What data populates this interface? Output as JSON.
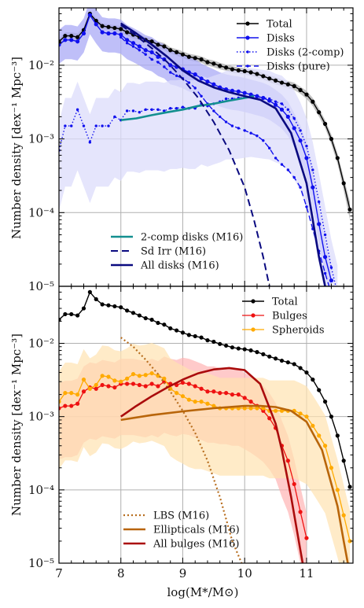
{
  "figure": {
    "xlabel": "log(M*/M⊙)",
    "xlim": [
      7.0,
      11.75
    ],
    "x_ticks": [
      7,
      8,
      9,
      10,
      11
    ],
    "x_tick_labels": [
      "7",
      "8",
      "9",
      "10",
      "11"
    ],
    "ylabel": "Number density [dex⁻¹ Mpc⁻³]",
    "y_scale": "log",
    "ylim": [
      1e-05,
      0.06
    ],
    "y_ticks": [
      1e-05,
      0.0001,
      0.001,
      0.01
    ],
    "y_tick_labels": [
      "10⁻⁵",
      "10⁻⁴",
      "10⁻³",
      "10⁻²"
    ],
    "grid": true
  },
  "colors": {
    "total": "#000000",
    "total_band": "#bdbdbd",
    "disks": "#1010ee",
    "disks_band": "#aaaaf5",
    "disks_2comp_band": "#dcdcfb",
    "bulges": "#ee1111",
    "bulges_band": "#ffb3b3",
    "spheroids": "#ffaa00",
    "spheroids_band": "#ffe2b0",
    "m16_2comp": "#138f8f",
    "m16_sdirr": "#0a0a80",
    "m16_alldisks": "#0a0a80",
    "m16_lbs": "#b86e1f",
    "m16_ellipticals": "#b8650a",
    "m16_allbulges": "#aa0c0c"
  },
  "chart_data": [
    {
      "type": "line",
      "panel": "top",
      "y_scale": "log",
      "xlim": [
        7.0,
        11.75
      ],
      "ylim": [
        1e-05,
        0.06
      ],
      "grid": true,
      "legend_top": [
        "Total",
        "Disks",
        "Disks (2-comp)",
        "Disks (pure)"
      ],
      "legend_top_placement": "upper-right",
      "legend_bottom": [
        "2-comp disks (M16)",
        "Sd Irr (M16)",
        "All disks (M16)"
      ],
      "legend_bottom_placement": "lower-center",
      "series": [
        {
          "name": "Total",
          "x": [
            7.0,
            7.1,
            7.2,
            7.3,
            7.4,
            7.5,
            7.6,
            7.7,
            7.8,
            7.9,
            8.0,
            8.1,
            8.2,
            8.3,
            8.4,
            8.5,
            8.6,
            8.7,
            8.8,
            8.9,
            9.0,
            9.1,
            9.2,
            9.3,
            9.4,
            9.5,
            9.6,
            9.7,
            9.8,
            9.9,
            10.0,
            10.1,
            10.2,
            10.3,
            10.4,
            10.5,
            10.6,
            10.7,
            10.8,
            10.9,
            11.0,
            11.1,
            11.2,
            11.3,
            11.4,
            11.5,
            11.6,
            11.7
          ],
          "y": [
            0.021,
            0.025,
            0.025,
            0.024,
            0.03,
            0.05,
            0.04,
            0.034,
            0.033,
            0.032,
            0.031,
            0.028,
            0.026,
            0.024,
            0.022,
            0.021,
            0.019,
            0.018,
            0.016,
            0.015,
            0.014,
            0.013,
            0.0125,
            0.012,
            0.011,
            0.0105,
            0.0098,
            0.0093,
            0.0088,
            0.0085,
            0.0083,
            0.008,
            0.0076,
            0.0071,
            0.0066,
            0.0062,
            0.0058,
            0.0055,
            0.0052,
            0.0046,
            0.004,
            0.0032,
            0.0023,
            0.0016,
            0.001,
            0.00055,
            0.00025,
            0.00011
          ],
          "band_lo": [
            0.019,
            0.022,
            0.022,
            0.021,
            0.027,
            0.045,
            0.036,
            0.031,
            0.03,
            0.029,
            0.028,
            0.025,
            0.023,
            0.022,
            0.02,
            0.019,
            0.017,
            0.016,
            0.0145,
            0.0135,
            0.0125,
            0.0117,
            0.0112,
            0.0108,
            0.0099,
            0.0094,
            0.0088,
            0.0084,
            0.0079,
            0.0077,
            0.0075,
            0.0072,
            0.0068,
            0.0064,
            0.0059,
            0.0055,
            0.0052,
            0.0049,
            0.0046,
            0.0041,
            0.0035,
            0.0028,
            0.002,
            0.0014,
            0.00085,
            0.00046,
            0.0002,
            8e-05
          ],
          "band_hi": [
            0.023,
            0.028,
            0.028,
            0.027,
            0.033,
            0.055,
            0.044,
            0.037,
            0.036,
            0.035,
            0.034,
            0.031,
            0.029,
            0.026,
            0.024,
            0.023,
            0.021,
            0.02,
            0.0175,
            0.0165,
            0.0155,
            0.0143,
            0.0138,
            0.0132,
            0.0121,
            0.0116,
            0.0108,
            0.0102,
            0.0097,
            0.0093,
            0.0091,
            0.0088,
            0.0084,
            0.0078,
            0.0073,
            0.0069,
            0.0064,
            0.0061,
            0.0058,
            0.0051,
            0.0045,
            0.0036,
            0.0026,
            0.0018,
            0.00115,
            0.00064,
            0.0003,
            0.00014
          ]
        },
        {
          "name": "Disks",
          "x": [
            7.0,
            7.1,
            7.2,
            7.3,
            7.4,
            7.5,
            7.6,
            7.7,
            7.8,
            7.9,
            8.0,
            8.1,
            8.2,
            8.3,
            8.4,
            8.5,
            8.6,
            8.7,
            8.8,
            8.9,
            9.0,
            9.1,
            9.2,
            9.3,
            9.4,
            9.5,
            9.6,
            9.7,
            9.8,
            9.9,
            10.0,
            10.1,
            10.2,
            10.3,
            10.4,
            10.5,
            10.6,
            10.7,
            10.8,
            10.9,
            11.0,
            11.1,
            11.2,
            11.3,
            11.4
          ],
          "y": [
            0.019,
            0.022,
            0.022,
            0.021,
            0.027,
            0.048,
            0.036,
            0.028,
            0.027,
            0.027,
            0.026,
            0.022,
            0.02,
            0.018,
            0.016,
            0.015,
            0.013,
            0.012,
            0.01,
            0.0095,
            0.0088,
            0.008,
            0.0075,
            0.0066,
            0.006,
            0.0055,
            0.005,
            0.0047,
            0.0045,
            0.0044,
            0.0042,
            0.004,
            0.0038,
            0.0036,
            0.0033,
            0.0029,
            0.0025,
            0.002,
            0.0014,
            0.00095,
            0.00055,
            0.00022,
            7e-05,
            2.5e-05,
            1.2e-05
          ]
        },
        {
          "name": "Disks (2-comp)",
          "x": [
            7.0,
            7.1,
            7.2,
            7.3,
            7.4,
            7.5,
            7.6,
            7.7,
            7.8,
            7.9,
            8.0,
            8.1,
            8.2,
            8.3,
            8.4,
            8.5,
            8.6,
            8.7,
            8.8,
            8.9,
            9.0,
            9.1,
            9.2,
            9.3,
            9.4,
            9.5,
            9.6,
            9.7,
            9.8,
            9.9,
            10.0,
            10.1,
            10.2,
            10.3,
            10.4,
            10.5,
            10.6,
            10.7,
            10.8,
            10.9,
            11.0,
            11.1,
            11.2,
            11.3,
            11.4,
            11.5
          ],
          "y": [
            0.0007,
            0.0015,
            0.0015,
            0.0025,
            0.0015,
            0.0009,
            0.0015,
            0.0015,
            0.0015,
            0.002,
            0.0018,
            0.0024,
            0.0024,
            0.0023,
            0.0025,
            0.0025,
            0.0025,
            0.0024,
            0.0026,
            0.0026,
            0.0027,
            0.0026,
            0.0026,
            0.003,
            0.0028,
            0.003,
            0.0032,
            0.0035,
            0.0035,
            0.0036,
            0.0037,
            0.0038,
            0.0037,
            0.0036,
            0.0035,
            0.0032,
            0.003,
            0.0025,
            0.0019,
            0.0013,
            0.0008,
            0.00038,
            0.00014,
            5e-05,
            1.8e-05,
            8e-06
          ]
        },
        {
          "name": "Disks (pure)",
          "x": [
            8.0,
            8.1,
            8.2,
            8.3,
            8.4,
            8.5,
            8.6,
            8.7,
            8.8,
            8.9,
            9.0,
            9.1,
            9.2,
            9.3,
            9.4,
            9.5,
            9.6,
            9.7,
            9.8,
            9.9,
            10.0,
            10.1,
            10.2,
            10.3,
            10.4,
            10.5,
            10.6,
            10.7,
            10.8,
            10.9,
            11.0,
            11.1,
            11.2,
            11.3,
            11.4
          ],
          "y": [
            0.024,
            0.02,
            0.018,
            0.016,
            0.014,
            0.012,
            0.011,
            0.0095,
            0.008,
            0.0072,
            0.0066,
            0.0058,
            0.0049,
            0.0038,
            0.003,
            0.0024,
            0.002,
            0.0017,
            0.0015,
            0.0014,
            0.0013,
            0.0012,
            0.0011,
            0.00095,
            0.00075,
            0.00055,
            0.00045,
            0.00038,
            0.0003,
            0.00022,
            0.00012,
            6e-05,
            3e-05,
            1.5e-05,
            8e-06
          ]
        },
        {
          "name": "2-comp disks (M16)",
          "x": [
            8.0,
            8.25,
            8.5,
            8.75,
            9.0,
            9.25,
            9.5,
            9.75,
            10.0,
            10.15
          ],
          "y": [
            0.0018,
            0.0019,
            0.0021,
            0.0023,
            0.0025,
            0.0028,
            0.003,
            0.0033,
            0.0036,
            0.0038
          ]
        },
        {
          "name": "Sd Irr (M16)",
          "x": [
            8.0,
            8.25,
            8.5,
            8.75,
            9.0,
            9.25,
            9.5,
            9.75,
            10.0,
            10.15,
            10.3,
            10.4
          ],
          "y": [
            0.035,
            0.025,
            0.017,
            0.011,
            0.0065,
            0.0036,
            0.0017,
            0.0007,
            0.00022,
            8e-05,
            2.5e-05,
            1e-05
          ]
        },
        {
          "name": "All disks (M16)",
          "x": [
            8.0,
            8.25,
            8.5,
            8.75,
            9.0,
            9.25,
            9.5,
            9.75,
            10.0,
            10.25,
            10.5,
            10.75,
            11.0,
            11.1,
            11.2,
            11.3
          ],
          "y": [
            0.037,
            0.027,
            0.019,
            0.013,
            0.0085,
            0.0062,
            0.005,
            0.0043,
            0.0038,
            0.0034,
            0.0026,
            0.0012,
            0.00025,
            8e-05,
            2.5e-05,
            1e-05
          ]
        }
      ]
    },
    {
      "type": "line",
      "panel": "bottom",
      "y_scale": "log",
      "xlim": [
        7.0,
        11.75
      ],
      "ylim": [
        1e-05,
        0.06
      ],
      "grid": true,
      "legend_top": [
        "Total",
        "Bulges",
        "Spheroids"
      ],
      "legend_top_placement": "upper-right",
      "legend_bottom": [
        "LBS (M16)",
        "Ellipticals (M16)",
        "All bulges (M16)"
      ],
      "legend_bottom_placement": "lower-center",
      "series": [
        {
          "name": "Total",
          "x": [
            7.0,
            7.1,
            7.2,
            7.3,
            7.4,
            7.5,
            7.6,
            7.7,
            7.8,
            7.9,
            8.0,
            8.1,
            8.2,
            8.3,
            8.4,
            8.5,
            8.6,
            8.7,
            8.8,
            8.9,
            9.0,
            9.1,
            9.2,
            9.3,
            9.4,
            9.5,
            9.6,
            9.7,
            9.8,
            9.9,
            10.0,
            10.1,
            10.2,
            10.3,
            10.4,
            10.5,
            10.6,
            10.7,
            10.8,
            10.9,
            11.0,
            11.1,
            11.2,
            11.3,
            11.4,
            11.5,
            11.6,
            11.7
          ],
          "y": [
            0.021,
            0.025,
            0.025,
            0.024,
            0.03,
            0.05,
            0.04,
            0.034,
            0.033,
            0.032,
            0.031,
            0.028,
            0.026,
            0.024,
            0.022,
            0.021,
            0.019,
            0.018,
            0.016,
            0.015,
            0.014,
            0.013,
            0.0125,
            0.012,
            0.011,
            0.0105,
            0.0098,
            0.0093,
            0.0088,
            0.0085,
            0.0083,
            0.008,
            0.0076,
            0.0071,
            0.0066,
            0.0062,
            0.0058,
            0.0055,
            0.0052,
            0.0046,
            0.004,
            0.0032,
            0.0023,
            0.0016,
            0.001,
            0.00055,
            0.00025,
            0.00011
          ]
        },
        {
          "name": "Bulges",
          "x": [
            7.0,
            7.1,
            7.2,
            7.3,
            7.4,
            7.5,
            7.6,
            7.7,
            7.8,
            7.9,
            8.0,
            8.1,
            8.2,
            8.3,
            8.4,
            8.5,
            8.6,
            8.7,
            8.8,
            8.9,
            9.0,
            9.1,
            9.2,
            9.3,
            9.4,
            9.5,
            9.6,
            9.7,
            9.8,
            9.9,
            10.0,
            10.1,
            10.2,
            10.3,
            10.4,
            10.5,
            10.6,
            10.7,
            10.8,
            10.9,
            11.0
          ],
          "y": [
            0.0013,
            0.0014,
            0.0014,
            0.0015,
            0.0022,
            0.0025,
            0.0024,
            0.0027,
            0.0026,
            0.0025,
            0.0028,
            0.0028,
            0.0028,
            0.0027,
            0.0026,
            0.0028,
            0.0026,
            0.003,
            0.0028,
            0.0027,
            0.0029,
            0.0028,
            0.0026,
            0.0024,
            0.0022,
            0.0022,
            0.0021,
            0.0021,
            0.002,
            0.002,
            0.0018,
            0.0016,
            0.0014,
            0.0012,
            0.00095,
            0.0007,
            0.0004,
            0.00025,
            0.00012,
            5e-05,
            2.2e-05
          ]
        },
        {
          "name": "Spheroids",
          "x": [
            7.0,
            7.1,
            7.2,
            7.3,
            7.4,
            7.5,
            7.6,
            7.7,
            7.8,
            7.9,
            8.0,
            8.1,
            8.2,
            8.3,
            8.4,
            8.5,
            8.6,
            8.7,
            8.8,
            8.9,
            9.0,
            9.1,
            9.2,
            9.3,
            9.4,
            9.5,
            9.6,
            9.7,
            9.8,
            9.9,
            10.0,
            10.1,
            10.2,
            10.3,
            10.4,
            10.5,
            10.6,
            10.7,
            10.8,
            10.9,
            11.0,
            11.1,
            11.2,
            11.3,
            11.4,
            11.5,
            11.6,
            11.7
          ],
          "y": [
            0.0016,
            0.0021,
            0.0021,
            0.002,
            0.0032,
            0.0024,
            0.0027,
            0.0036,
            0.0035,
            0.0031,
            0.003,
            0.0033,
            0.0038,
            0.0036,
            0.0037,
            0.0039,
            0.0036,
            0.0033,
            0.0024,
            0.0021,
            0.0019,
            0.0017,
            0.0016,
            0.0016,
            0.0015,
            0.0014,
            0.0013,
            0.0013,
            0.0013,
            0.0013,
            0.0013,
            0.0013,
            0.0013,
            0.0013,
            0.0012,
            0.0012,
            0.0012,
            0.0012,
            0.0012,
            0.0011,
            0.001,
            0.00075,
            0.00055,
            0.0004,
            0.0002,
            0.0001,
            4.5e-05,
            2e-05
          ]
        },
        {
          "name": "LBS (M16)",
          "x": [
            8.0,
            8.2,
            8.4,
            8.6,
            8.8,
            9.0,
            9.2,
            9.4,
            9.6,
            9.8,
            10.0
          ],
          "y": [
            0.012,
            0.009,
            0.006,
            0.0038,
            0.0022,
            0.0012,
            0.0006,
            0.00025,
            8e-05,
            2e-05,
            8e-06
          ]
        },
        {
          "name": "Ellipticals (M16)",
          "x": [
            8.0,
            8.5,
            9.0,
            9.5,
            10.0,
            10.25,
            10.5,
            10.75,
            11.0,
            11.25,
            11.5,
            11.6,
            11.7
          ],
          "y": [
            0.0009,
            0.00105,
            0.00118,
            0.0013,
            0.0014,
            0.0014,
            0.00135,
            0.0012,
            0.00085,
            0.00035,
            6e-05,
            2e-05,
            7e-06
          ]
        },
        {
          "name": "All bulges (M16)",
          "x": [
            8.0,
            8.25,
            8.5,
            8.75,
            9.0,
            9.25,
            9.5,
            9.75,
            10.0,
            10.25,
            10.5,
            10.6,
            10.75,
            10.9,
            11.0
          ],
          "y": [
            0.001,
            0.0014,
            0.0019,
            0.0025,
            0.0032,
            0.0039,
            0.0044,
            0.0046,
            0.0043,
            0.0028,
            0.0008,
            0.00035,
            8e-05,
            1.5e-05,
            5e-06
          ]
        }
      ]
    }
  ]
}
